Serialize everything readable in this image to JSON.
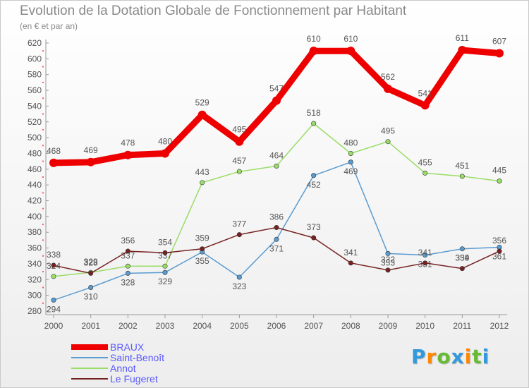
{
  "chart_data": {
    "type": "line",
    "title": "Evolution de la Dotation Globale de Fonctionnement par Habitant",
    "subtitle": "(en € et par an)",
    "xlabel": "",
    "ylabel": "",
    "ylim": [
      280,
      620
    ],
    "yticks": [
      280,
      300,
      320,
      340,
      360,
      380,
      400,
      420,
      440,
      460,
      480,
      500,
      520,
      540,
      560,
      580,
      600,
      620
    ],
    "categories": [
      "2000",
      "2001",
      "2002",
      "2003",
      "2004",
      "2005",
      "2006",
      "2007",
      "2008",
      "2009",
      "2010",
      "2011",
      "2012"
    ],
    "grid": false,
    "legend_position": "bottom-left",
    "series": [
      {
        "name": "BRAUX",
        "color": "#ee0000",
        "emphasis": true,
        "values": [
          468,
          469,
          478,
          480,
          529,
          495,
          547,
          610,
          610,
          562,
          541,
          611,
          607
        ]
      },
      {
        "name": "Saint-Benoît",
        "color": "#5a9bd0",
        "emphasis": false,
        "values": [
          294,
          310,
          328,
          329,
          355,
          323,
          371,
          452,
          469,
          353,
          351,
          359,
          361
        ]
      },
      {
        "name": "Annot",
        "color": "#99dd66",
        "emphasis": false,
        "values": [
          324,
          329,
          337,
          337,
          443,
          457,
          464,
          518,
          480,
          495,
          455,
          451,
          445
        ]
      },
      {
        "name": "Le Fugeret",
        "color": "#772222",
        "emphasis": false,
        "values": [
          338,
          328,
          356,
          354,
          359,
          377,
          386,
          373,
          341,
          332,
          341,
          334,
          356
        ]
      }
    ]
  },
  "brand": {
    "letters": [
      "P",
      "r",
      "o",
      "x",
      "i",
      "t",
      "i"
    ],
    "colors": [
      "#3399dd",
      "#ff8800",
      "#66bb33",
      "#3399dd",
      "#ff8800",
      "#66bb33",
      "#3399dd"
    ]
  }
}
